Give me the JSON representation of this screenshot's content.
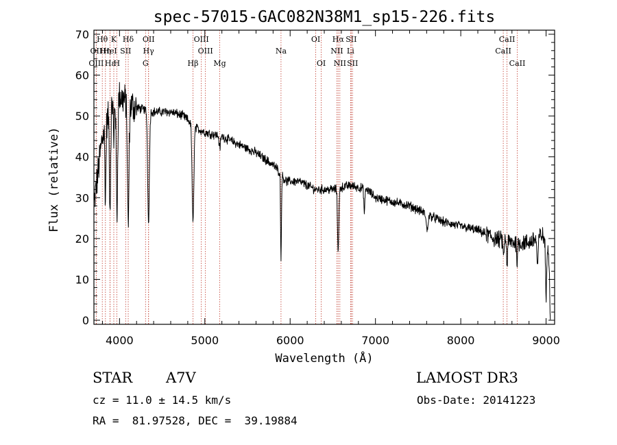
{
  "chart_data": {
    "type": "line",
    "title": "spec-57015-GAC082N38M1_sp15-226.fits",
    "xlabel": "Wavelength (Å)",
    "ylabel": "Flux (relative)",
    "xlim": [
      3700,
      9100
    ],
    "ylim": [
      -1,
      71
    ],
    "xticks": [
      4000,
      5000,
      6000,
      7000,
      8000,
      9000
    ],
    "yticks": [
      0,
      10,
      20,
      30,
      40,
      50,
      60,
      70
    ],
    "continuum": [
      [
        3700,
        28
      ],
      [
        3800,
        45
      ],
      [
        3900,
        52
      ],
      [
        4000,
        55
      ],
      [
        4100,
        53
      ],
      [
        4200,
        52
      ],
      [
        4400,
        51
      ],
      [
        4600,
        51
      ],
      [
        4750,
        50
      ],
      [
        4800,
        49
      ],
      [
        4900,
        47
      ],
      [
        5000,
        46
      ],
      [
        5200,
        45
      ],
      [
        5400,
        43
      ],
      [
        5600,
        41
      ],
      [
        5800,
        38
      ],
      [
        5850,
        37
      ],
      [
        5950,
        34
      ],
      [
        6100,
        34
      ],
      [
        6300,
        32
      ],
      [
        6500,
        32
      ],
      [
        6700,
        33
      ],
      [
        6900,
        32
      ],
      [
        7000,
        30
      ],
      [
        7200,
        29
      ],
      [
        7400,
        28
      ],
      [
        7600,
        26
      ],
      [
        7800,
        24
      ],
      [
        8000,
        23
      ],
      [
        8200,
        22
      ],
      [
        8400,
        20
      ],
      [
        8600,
        19
      ],
      [
        8800,
        19
      ],
      [
        8950,
        21
      ],
      [
        9050,
        17
      ]
    ],
    "absorption_features": [
      {
        "center": 3835,
        "depth": 18,
        "width": 6
      },
      {
        "center": 3889,
        "depth": 24,
        "width": 7
      },
      {
        "center": 3933,
        "depth": 12,
        "width": 4
      },
      {
        "center": 3970,
        "depth": 28,
        "width": 8
      },
      {
        "center": 4102,
        "depth": 30,
        "width": 9
      },
      {
        "center": 4340,
        "depth": 27,
        "width": 10
      },
      {
        "center": 4861,
        "depth": 24,
        "width": 10
      },
      {
        "center": 5175,
        "depth": 3,
        "width": 8
      },
      {
        "center": 5893,
        "depth": 21,
        "width": 5
      },
      {
        "center": 6563,
        "depth": 15,
        "width": 8
      },
      {
        "center": 6870,
        "depth": 6,
        "width": 6
      },
      {
        "center": 7605,
        "depth": 4,
        "width": 10
      },
      {
        "center": 8500,
        "depth": 5,
        "width": 5
      },
      {
        "center": 8542,
        "depth": 6,
        "width": 5
      },
      {
        "center": 8662,
        "depth": 5,
        "width": 5
      },
      {
        "center": 8900,
        "depth": 7,
        "width": 8
      },
      {
        "center": 9000,
        "depth": 14,
        "width": 6
      }
    ],
    "noise_amplitude": 0.9,
    "line_markers": [
      {
        "label": "Hθ",
        "wavelength": 3798,
        "row": 0
      },
      {
        "label": "K",
        "wavelength": 3933,
        "row": 0
      },
      {
        "label": "Hδ",
        "wavelength": 4102,
        "row": 0
      },
      {
        "label": "OII",
        "wavelength": 4341,
        "row": 0
      },
      {
        "label": "OIII",
        "wavelength": 4959,
        "row": 0
      },
      {
        "label": "OI",
        "wavelength": 6300,
        "row": 0
      },
      {
        "label": "Hα",
        "wavelength": 6563,
        "row": 0
      },
      {
        "label": "SII",
        "wavelength": 6716,
        "row": 0
      },
      {
        "label": "CaII",
        "wavelength": 8542,
        "row": 0
      },
      {
        "label": "OII",
        "wavelength": 3727,
        "row": 1
      },
      {
        "label": "Hη",
        "wavelength": 3835,
        "row": 1
      },
      {
        "label": "HeI",
        "wavelength": 3889,
        "row": 1
      },
      {
        "label": "SII",
        "wavelength": 4072,
        "row": 1
      },
      {
        "label": "Hγ",
        "wavelength": 4340,
        "row": 1
      },
      {
        "label": "OIII",
        "wavelength": 5007,
        "row": 1
      },
      {
        "label": "Na",
        "wavelength": 5893,
        "row": 1
      },
      {
        "label": "NII",
        "wavelength": 6548,
        "row": 1
      },
      {
        "label": "Li",
        "wavelength": 6708,
        "row": 1
      },
      {
        "label": "CaII",
        "wavelength": 8498,
        "row": 1
      },
      {
        "label": "OIII",
        "wavelength": 3727,
        "row": 2
      },
      {
        "label": "Hε",
        "wavelength": 3889,
        "row": 2
      },
      {
        "label": "H",
        "wavelength": 3968,
        "row": 2
      },
      {
        "label": "G",
        "wavelength": 4305,
        "row": 2
      },
      {
        "label": "Hβ",
        "wavelength": 4861,
        "row": 2
      },
      {
        "label": "Mg",
        "wavelength": 5175,
        "row": 2
      },
      {
        "label": "OI",
        "wavelength": 6364,
        "row": 2
      },
      {
        "label": "NII",
        "wavelength": 6583,
        "row": 2
      },
      {
        "label": "SII",
        "wavelength": 6731,
        "row": 2
      },
      {
        "label": "CaII",
        "wavelength": 8662,
        "row": 2
      }
    ]
  },
  "info": {
    "object_class": "STAR",
    "subclass": "A7V",
    "survey": "LAMOST DR3",
    "redshift": "cz = 11.0 ± 14.5 km/s",
    "obs_date": "Obs-Date: 20141223",
    "coordinates": "RA =  81.97528, DEC =  39.19884"
  },
  "colors": {
    "spectrum": "#000000",
    "marker_line": "#c0392b",
    "axes": "#000000"
  }
}
